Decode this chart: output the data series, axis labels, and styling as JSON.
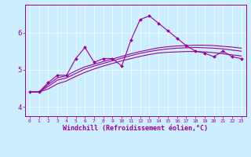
{
  "x": [
    0,
    1,
    2,
    3,
    4,
    5,
    6,
    7,
    8,
    9,
    10,
    11,
    12,
    13,
    14,
    15,
    16,
    17,
    18,
    19,
    20,
    21,
    22,
    23
  ],
  "line1": [
    4.4,
    4.4,
    4.65,
    4.85,
    4.85,
    5.3,
    5.6,
    5.2,
    5.3,
    5.3,
    5.1,
    5.8,
    6.35,
    6.45,
    6.25,
    6.05,
    5.85,
    5.65,
    5.5,
    5.45,
    5.35,
    5.5,
    5.35,
    5.3
  ],
  "line2": [
    4.4,
    4.4,
    4.6,
    4.78,
    4.84,
    4.97,
    5.08,
    5.15,
    5.22,
    5.29,
    5.36,
    5.43,
    5.49,
    5.54,
    5.59,
    5.62,
    5.64,
    5.65,
    5.66,
    5.66,
    5.65,
    5.63,
    5.61,
    5.58
  ],
  "line3": [
    4.4,
    4.4,
    4.55,
    4.72,
    4.78,
    4.9,
    5.02,
    5.1,
    5.17,
    5.24,
    5.31,
    5.38,
    5.44,
    5.49,
    5.53,
    5.56,
    5.58,
    5.59,
    5.6,
    5.59,
    5.58,
    5.56,
    5.53,
    5.5
  ],
  "line4": [
    4.4,
    4.4,
    4.48,
    4.62,
    4.7,
    4.82,
    4.93,
    5.02,
    5.1,
    5.17,
    5.24,
    5.3,
    5.36,
    5.41,
    5.45,
    5.47,
    5.48,
    5.49,
    5.49,
    5.48,
    5.46,
    5.43,
    5.4,
    5.37
  ],
  "line_color": "#990099",
  "bg_color": "#cceeff",
  "grid_color": "#aaddee",
  "xlabel": "Windchill (Refroidissement éolien,°C)",
  "ylim": [
    3.75,
    6.75
  ],
  "yticks": [
    4,
    5,
    6
  ],
  "xlim": [
    -0.5,
    23.5
  ],
  "xticks": [
    0,
    1,
    2,
    3,
    4,
    5,
    6,
    7,
    8,
    9,
    10,
    11,
    12,
    13,
    14,
    15,
    16,
    17,
    18,
    19,
    20,
    21,
    22,
    23
  ]
}
